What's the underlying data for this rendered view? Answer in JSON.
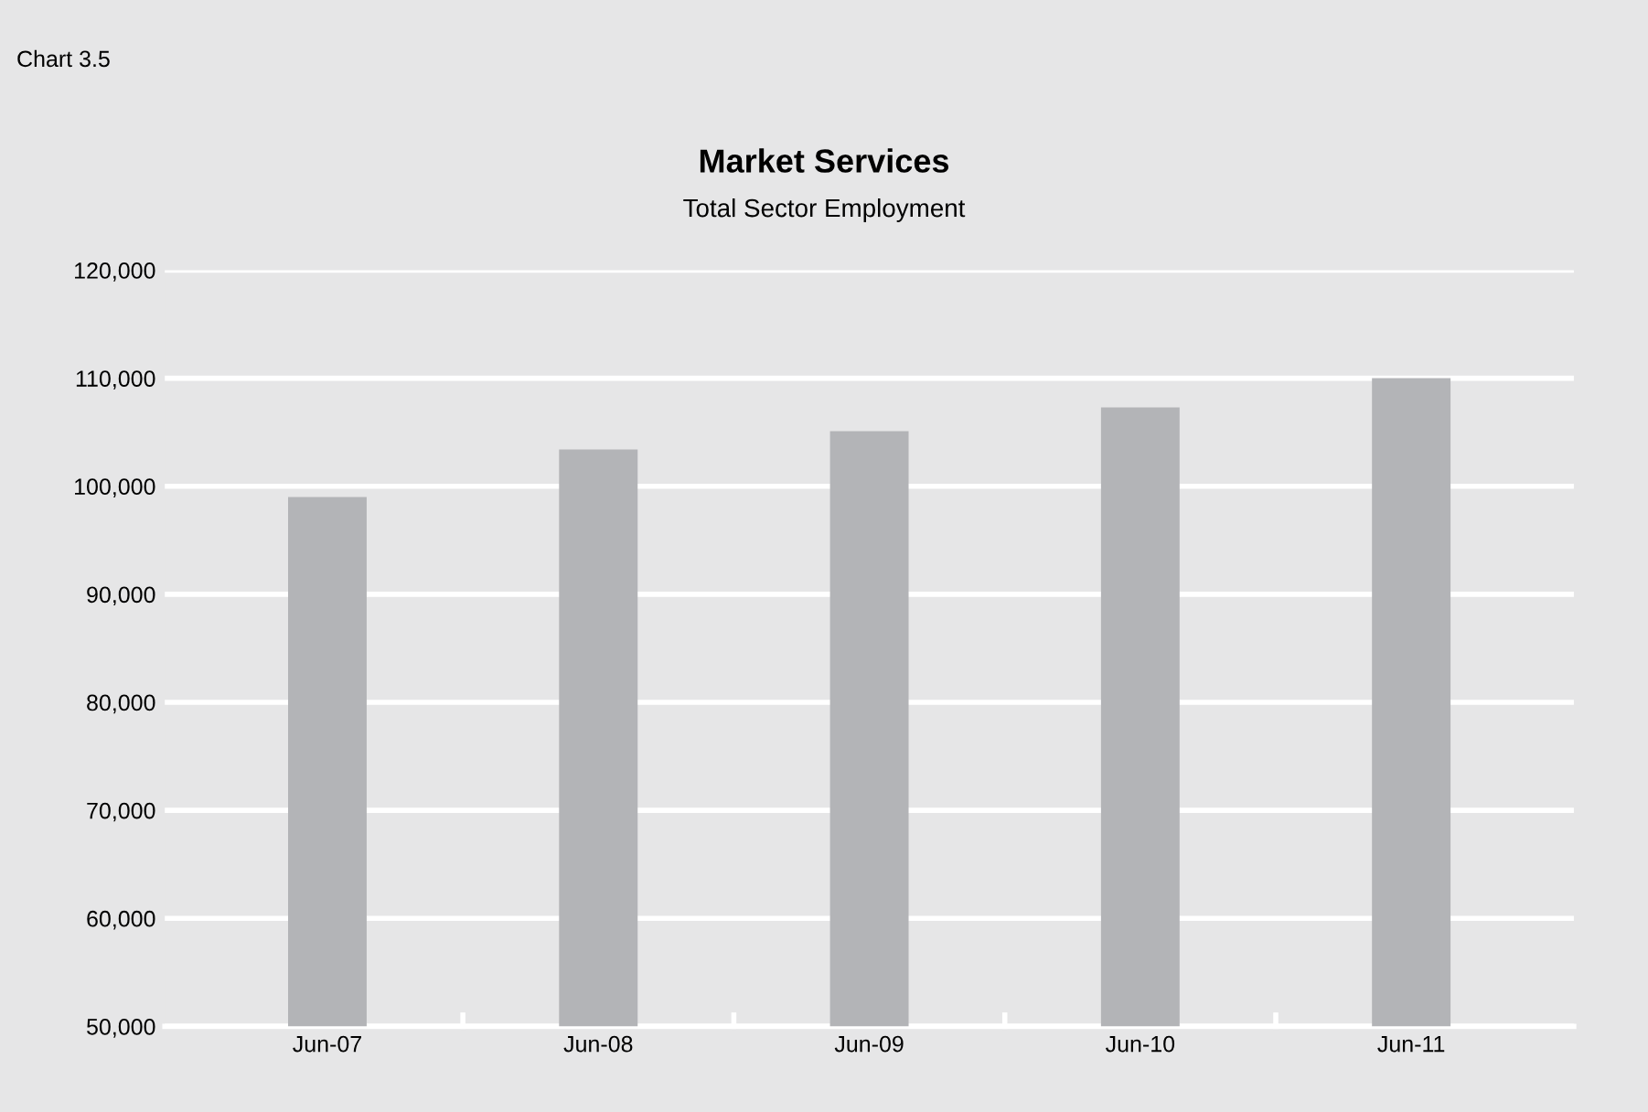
{
  "chart_data": {
    "type": "bar",
    "title": "Market Services",
    "subtitle": "Total Sector Employment",
    "annotations": [
      "Chart 3.5"
    ],
    "categories": [
      "Jun-07",
      "Jun-08",
      "Jun-09",
      "Jun-10",
      "Jun-11"
    ],
    "values": [
      99000,
      103400,
      105100,
      107300,
      110000
    ],
    "color": "#b3b4b7",
    "ylim": [
      50000,
      120000
    ],
    "yticks": [
      {
        "value": 50000,
        "label": "50,000"
      },
      {
        "value": 60000,
        "label": "60,000"
      },
      {
        "value": 70000,
        "label": "70,000"
      },
      {
        "value": 80000,
        "label": "80,000"
      },
      {
        "value": 90000,
        "label": "90,000"
      },
      {
        "value": 100000,
        "label": "100,000"
      },
      {
        "value": 110000,
        "label": "110,000"
      },
      {
        "value": 120000,
        "label": "120,000"
      }
    ],
    "grid": "y",
    "legend": false
  }
}
